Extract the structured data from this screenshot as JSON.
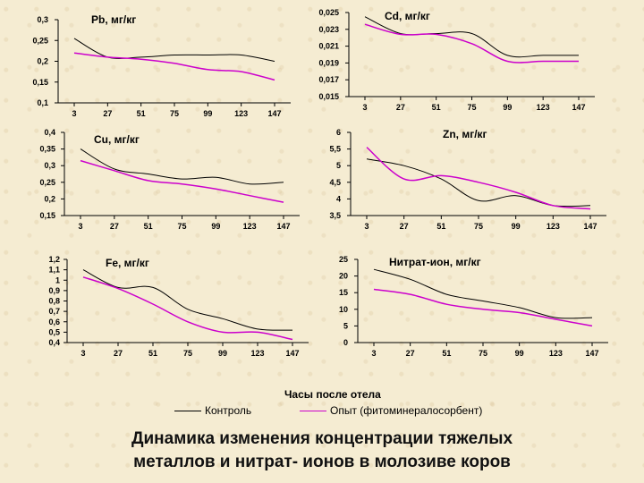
{
  "colors": {
    "control": "#000000",
    "experiment": "#cc00cc"
  },
  "x_axis_caption": "Часы после отела",
  "legend": {
    "control": "Контроль",
    "experiment": "Опыт (фитоминералосорбент)"
  },
  "title_line1": "Динамика изменения концентрации тяжелых",
  "title_line2": "металлов и нитрат- ионов в молозиве коров",
  "chart_data": [
    {
      "type": "line",
      "title": "Pb, мг/кг",
      "x": [
        3,
        27,
        51,
        75,
        99,
        123,
        147
      ],
      "y_ticks": [
        "0,3",
        "0,25",
        "0,2",
        "0,15",
        "0,1"
      ],
      "ylim": [
        0.1,
        0.3
      ],
      "series": [
        {
          "name": "Контроль",
          "values": [
            0.255,
            0.21,
            0.21,
            0.215,
            0.215,
            0.215,
            0.2
          ]
        },
        {
          "name": "Опыт (фитоминералосорбент)",
          "values": [
            0.22,
            0.21,
            0.205,
            0.195,
            0.18,
            0.175,
            0.155
          ]
        }
      ]
    },
    {
      "type": "line",
      "title": "Cd, мг/кг",
      "x": [
        3,
        27,
        51,
        75,
        99,
        123,
        147
      ],
      "y_ticks": [
        "0,025",
        "0,023",
        "0,021",
        "0,019",
        "0,017",
        "0,015"
      ],
      "ylim": [
        0.015,
        0.025
      ],
      "series": [
        {
          "name": "Контроль",
          "values": [
            0.0245,
            0.0225,
            0.0225,
            0.0225,
            0.0199,
            0.0199,
            0.0199
          ]
        },
        {
          "name": "Опыт (фитоминералосорбент)",
          "values": [
            0.0236,
            0.0224,
            0.0224,
            0.0213,
            0.0192,
            0.0192,
            0.0192
          ]
        }
      ]
    },
    {
      "type": "line",
      "title": "Cu, мг/кг",
      "x": [
        3,
        27,
        51,
        75,
        99,
        123,
        147
      ],
      "y_ticks": [
        "0,4",
        "0,35",
        "0,3",
        "0,25",
        "0,2",
        "0,15"
      ],
      "ylim": [
        0.15,
        0.4
      ],
      "series": [
        {
          "name": "Контроль",
          "values": [
            0.35,
            0.29,
            0.275,
            0.26,
            0.265,
            0.245,
            0.25
          ]
        },
        {
          "name": "Опыт (фитоминералосорбент)",
          "values": [
            0.315,
            0.285,
            0.255,
            0.245,
            0.23,
            0.21,
            0.19
          ]
        }
      ]
    },
    {
      "type": "line",
      "title": "Zn, мг/кг",
      "x": [
        3,
        27,
        51,
        75,
        99,
        123,
        147
      ],
      "y_ticks": [
        "6",
        "5,5",
        "5",
        "4,5",
        "4",
        "3,5"
      ],
      "ylim": [
        3.5,
        6
      ],
      "series": [
        {
          "name": "Контроль",
          "values": [
            5.2,
            5.0,
            4.6,
            3.95,
            4.1,
            3.8,
            3.8
          ]
        },
        {
          "name": "Опыт (фитоминералосорбент)",
          "values": [
            5.55,
            4.6,
            4.7,
            4.5,
            4.2,
            3.8,
            3.7
          ]
        }
      ]
    },
    {
      "type": "line",
      "title": "Fe, мг/кг",
      "x": [
        3,
        27,
        51,
        75,
        99,
        123,
        147
      ],
      "y_ticks": [
        "1,2",
        "1,1",
        "1",
        "0,9",
        "0,8",
        "0,7",
        "0,6",
        "0,5",
        "0,4"
      ],
      "ylim": [
        0.4,
        1.2
      ],
      "series": [
        {
          "name": "Контроль",
          "values": [
            1.1,
            0.93,
            0.93,
            0.72,
            0.63,
            0.53,
            0.52
          ]
        },
        {
          "name": "Опыт (фитоминералосорбент)",
          "values": [
            1.03,
            0.92,
            0.77,
            0.6,
            0.5,
            0.5,
            0.43
          ]
        }
      ]
    },
    {
      "type": "line",
      "title": "Нитрат-ион, мг/кг",
      "x": [
        3,
        27,
        51,
        75,
        99,
        123,
        147
      ],
      "y_ticks": [
        "25",
        "20",
        "15",
        "10",
        "5",
        "0"
      ],
      "ylim": [
        0,
        25
      ],
      "series": [
        {
          "name": "Контроль",
          "values": [
            22,
            19,
            14.5,
            12.5,
            10.5,
            7.5,
            7.5
          ]
        },
        {
          "name": "Опыт (фитоминералосорбент)",
          "values": [
            16,
            14.5,
            11.5,
            10,
            9,
            7,
            5
          ]
        }
      ]
    }
  ]
}
